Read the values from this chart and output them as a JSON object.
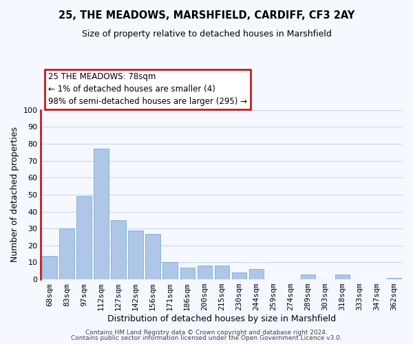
{
  "title": "25, THE MEADOWS, MARSHFIELD, CARDIFF, CF3 2AY",
  "subtitle": "Size of property relative to detached houses in Marshfield",
  "xlabel": "Distribution of detached houses by size in Marshfield",
  "ylabel": "Number of detached properties",
  "footer_lines": [
    "Contains HM Land Registry data © Crown copyright and database right 2024.",
    "Contains public sector information licensed under the Open Government Licence v3.0."
  ],
  "bar_labels": [
    "68sqm",
    "83sqm",
    "97sqm",
    "112sqm",
    "127sqm",
    "142sqm",
    "156sqm",
    "171sqm",
    "186sqm",
    "200sqm",
    "215sqm",
    "230sqm",
    "244sqm",
    "259sqm",
    "274sqm",
    "289sqm",
    "303sqm",
    "318sqm",
    "333sqm",
    "347sqm",
    "362sqm"
  ],
  "bar_values": [
    14,
    30,
    49,
    77,
    35,
    29,
    27,
    10,
    7,
    8,
    8,
    4,
    6,
    0,
    0,
    3,
    0,
    3,
    0,
    0,
    1
  ],
  "bar_color": "#aec6e8",
  "bar_edge_color": "#7aadd4",
  "ylim": [
    0,
    100
  ],
  "yticks": [
    0,
    10,
    20,
    30,
    40,
    50,
    60,
    70,
    80,
    90,
    100
  ],
  "annotation_title": "25 THE MEADOWS: 78sqm",
  "annotation_line1": "← 1% of detached houses are smaller (4)",
  "annotation_line2": "98% of semi-detached houses are larger (295) →",
  "vline_color": "#cc0000",
  "vline_x": 0.5,
  "background_color": "#f5f8ff",
  "grid_color": "#c8d8ec",
  "title_fontsize": 10.5,
  "subtitle_fontsize": 9,
  "ylabel_fontsize": 9,
  "xlabel_fontsize": 9,
  "tick_fontsize": 8,
  "footer_fontsize": 6.5
}
